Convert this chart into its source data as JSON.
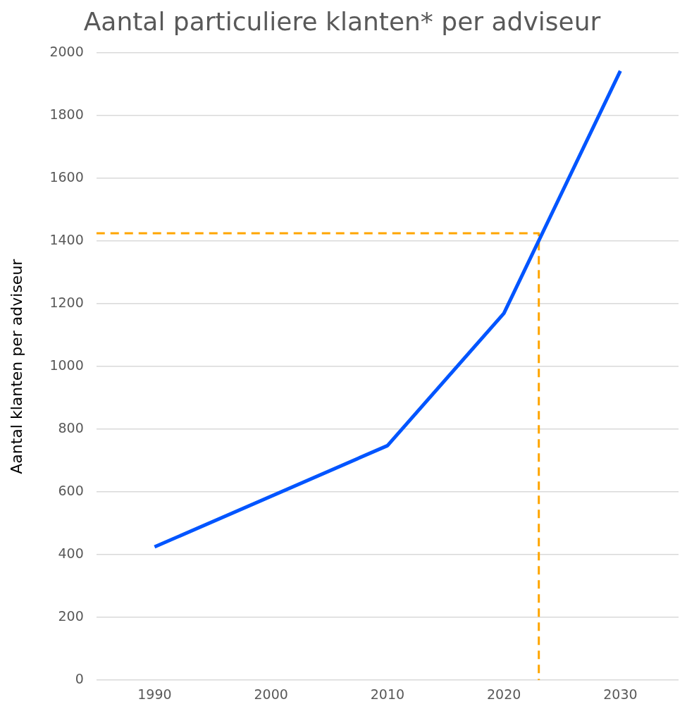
{
  "chart_data": {
    "type": "line",
    "title": "Aantal particuliere klanten* per adviseur",
    "ylabel": "Aantal klanten per adviseur",
    "xlim": [
      1985,
      2035
    ],
    "xticks": [
      1990,
      2000,
      2010,
      2020,
      2030
    ],
    "ylim": [
      0,
      2000
    ],
    "yticks": [
      0,
      200,
      400,
      600,
      800,
      1000,
      1200,
      1400,
      1600,
      1800,
      2000
    ],
    "grid": "y",
    "legend": false,
    "marker": "none",
    "series": [
      {
        "color": "#0055ff",
        "x": [
          1990,
          2010,
          2020,
          2030
        ],
        "values": [
          425,
          748,
          1170,
          1943
        ],
        "line_style": "solid"
      },
      {
        "color": "#ffa500",
        "x": [
          1985,
          2023,
          2023
        ],
        "values": [
          1425,
          1425,
          0
        ],
        "line_style": "dashed"
      }
    ]
  }
}
